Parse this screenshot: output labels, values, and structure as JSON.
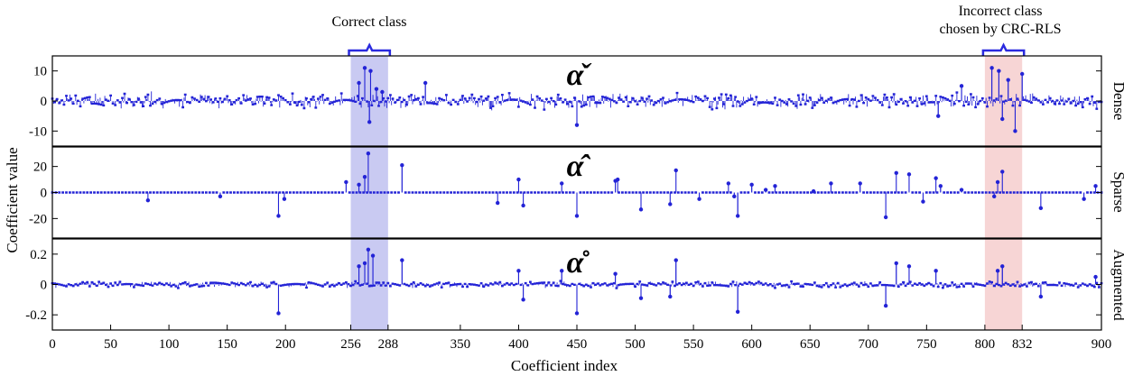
{
  "chart_data": {
    "type": "stem",
    "xlabel": "Coefficient index",
    "ylabel": "Coefficient value",
    "xlim": [
      0,
      900
    ],
    "xticks": [
      {
        "value": 0,
        "label": "0"
      },
      {
        "value": 50,
        "label": "50"
      },
      {
        "value": 100,
        "label": "100"
      },
      {
        "value": 150,
        "label": "150"
      },
      {
        "value": 200,
        "label": "200"
      },
      {
        "value": 256,
        "label": "256"
      },
      {
        "value": 288,
        "label": "288"
      },
      {
        "value": 350,
        "label": "350"
      },
      {
        "value": 400,
        "label": "400"
      },
      {
        "value": 450,
        "label": "450"
      },
      {
        "value": 500,
        "label": "500"
      },
      {
        "value": 550,
        "label": "550"
      },
      {
        "value": 600,
        "label": "600"
      },
      {
        "value": 650,
        "label": "650"
      },
      {
        "value": 700,
        "label": "700"
      },
      {
        "value": 750,
        "label": "750"
      },
      {
        "value": 800,
        "label": "800"
      },
      {
        "value": 832,
        "label": "832"
      },
      {
        "value": 900,
        "label": "900"
      }
    ],
    "highlights": [
      {
        "range": [
          256,
          288
        ],
        "label": "Correct class",
        "color": "#c9caf2"
      },
      {
        "range": [
          800,
          832
        ],
        "label": "Incorrect class chosen by CRC-RLS",
        "color": "#f7d5d5"
      }
    ],
    "panels": [
      {
        "name": "Dense",
        "symbol": "α̌",
        "ylim": [
          -15,
          15
        ],
        "yticks": [
          {
            "value": 10,
            "label": "10"
          },
          {
            "value": 0,
            "label": "0"
          },
          {
            "value": -10,
            "label": "-10"
          }
        ],
        "spikes": [
          [
            263,
            6
          ],
          [
            268,
            11
          ],
          [
            273,
            10
          ],
          [
            278,
            4
          ],
          [
            272,
            -7
          ],
          [
            283,
            3
          ],
          [
            320,
            6
          ],
          [
            450,
            -8
          ],
          [
            806,
            11
          ],
          [
            812,
            10
          ],
          [
            820,
            7
          ],
          [
            826,
            -10
          ],
          [
            815,
            -6
          ],
          [
            832,
            9
          ],
          [
            780,
            5
          ],
          [
            760,
            -5
          ]
        ],
        "noise_scale": 2.2,
        "seed": 11
      },
      {
        "name": "Sparse",
        "symbol": "α̂",
        "ylim": [
          -35,
          35
        ],
        "yticks": [
          {
            "value": 20,
            "label": "20"
          },
          {
            "value": 0,
            "label": "0"
          },
          {
            "value": -20,
            "label": "-20"
          }
        ],
        "spikes": [
          [
            82,
            -6
          ],
          [
            144,
            -3
          ],
          [
            194,
            -18
          ],
          [
            199,
            -5
          ],
          [
            252,
            8
          ],
          [
            263,
            6
          ],
          [
            268,
            12
          ],
          [
            271,
            30
          ],
          [
            300,
            21
          ],
          [
            382,
            -8
          ],
          [
            400,
            10
          ],
          [
            404,
            -10
          ],
          [
            437,
            7
          ],
          [
            450,
            -18
          ],
          [
            483,
            9
          ],
          [
            485,
            10
          ],
          [
            505,
            -13
          ],
          [
            530,
            -9
          ],
          [
            535,
            17
          ],
          [
            555,
            -5
          ],
          [
            580,
            7
          ],
          [
            585,
            -3
          ],
          [
            588,
            -18
          ],
          [
            600,
            6
          ],
          [
            612,
            2
          ],
          [
            620,
            5
          ],
          [
            653,
            1
          ],
          [
            668,
            7
          ],
          [
            693,
            7
          ],
          [
            715,
            -19
          ],
          [
            724,
            15
          ],
          [
            735,
            14
          ],
          [
            747,
            -7
          ],
          [
            758,
            11
          ],
          [
            762,
            5
          ],
          [
            780,
            2
          ],
          [
            811,
            8
          ],
          [
            815,
            16
          ],
          [
            808,
            -3
          ],
          [
            848,
            -12
          ],
          [
            885,
            -5
          ],
          [
            895,
            5
          ]
        ],
        "noise_scale": 0,
        "seed": 0
      },
      {
        "name": "Augmented",
        "symbol": "α̊",
        "ylim": [
          -0.3,
          0.3
        ],
        "yticks": [
          {
            "value": 0.2,
            "label": "0.2"
          },
          {
            "value": 0,
            "label": "0"
          },
          {
            "value": -0.2,
            "label": "-0.2"
          }
        ],
        "spikes": [
          [
            194,
            -0.19
          ],
          [
            263,
            0.12
          ],
          [
            268,
            0.14
          ],
          [
            271,
            0.23
          ],
          [
            275,
            0.19
          ],
          [
            300,
            0.16
          ],
          [
            400,
            0.09
          ],
          [
            404,
            -0.1
          ],
          [
            450,
            -0.19
          ],
          [
            437,
            0.09
          ],
          [
            483,
            0.07
          ],
          [
            505,
            -0.09
          ],
          [
            535,
            0.16
          ],
          [
            530,
            -0.08
          ],
          [
            588,
            -0.18
          ],
          [
            715,
            -0.14
          ],
          [
            724,
            0.14
          ],
          [
            735,
            0.12
          ],
          [
            758,
            0.09
          ],
          [
            811,
            0.09
          ],
          [
            815,
            0.12
          ],
          [
            848,
            -0.08
          ],
          [
            895,
            0.05
          ]
        ],
        "noise_scale": 0.018,
        "seed": 29
      }
    ]
  }
}
